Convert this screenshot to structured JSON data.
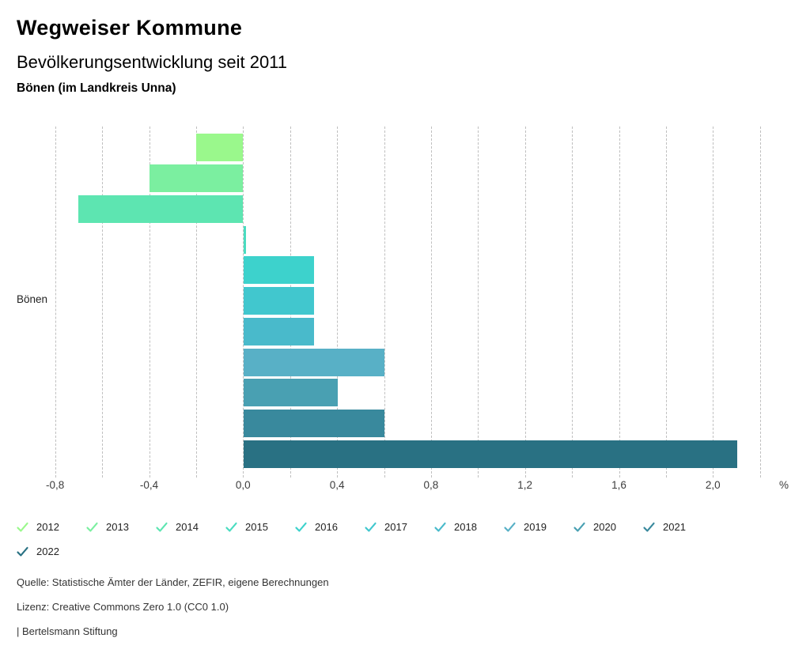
{
  "header": {
    "title": "Wegweiser Kommune",
    "subtitle": "Bevölkerungsentwicklung seit 2011",
    "region": "Bönen (im Landkreis Unna)"
  },
  "chart_data": {
    "type": "bar",
    "orientation": "horizontal",
    "title": "Bevölkerungsentwicklung seit 2011",
    "category": "Bönen",
    "series": [
      {
        "name": "2012",
        "value": -0.2,
        "color": "#9AF88C"
      },
      {
        "name": "2013",
        "value": -0.4,
        "color": "#7BEFA0"
      },
      {
        "name": "2014",
        "value": -0.7,
        "color": "#5DE5B1"
      },
      {
        "name": "2015",
        "value": 0.0,
        "color": "#4ADCC0"
      },
      {
        "name": "2016",
        "value": 0.3,
        "color": "#3DD2CC"
      },
      {
        "name": "2017",
        "value": 0.3,
        "color": "#41C7CE"
      },
      {
        "name": "2018",
        "value": 0.3,
        "color": "#49BACB"
      },
      {
        "name": "2019",
        "value": 0.6,
        "color": "#58B0C6"
      },
      {
        "name": "2020",
        "value": 0.4,
        "color": "#49A0B2"
      },
      {
        "name": "2021",
        "value": 0.6,
        "color": "#39899D"
      },
      {
        "name": "2022",
        "value": 2.1,
        "color": "#297183"
      }
    ],
    "xlim": [
      -0.9,
      2.3
    ],
    "grid_step": 0.2,
    "grid": true,
    "tick_values": [
      -0.8,
      -0.4,
      0.0,
      0.4,
      0.8,
      1.2,
      1.6,
      2.0
    ],
    "tick_labels": [
      "-0,8",
      "-0,4",
      "0,0",
      "0,4",
      "0,8",
      "1,2",
      "1,6",
      "2,0"
    ],
    "unit_label": "%",
    "legend_position": "bottom",
    "gridline_color": "#BFBFBF"
  },
  "footer": {
    "source": "Quelle: Statistische Ämter der Länder, ZEFIR, eigene Berechnungen",
    "license": "Lizenz: Creative Commons Zero 1.0 (CC0 1.0)",
    "attribution": "| Bertelsmann Stiftung"
  }
}
